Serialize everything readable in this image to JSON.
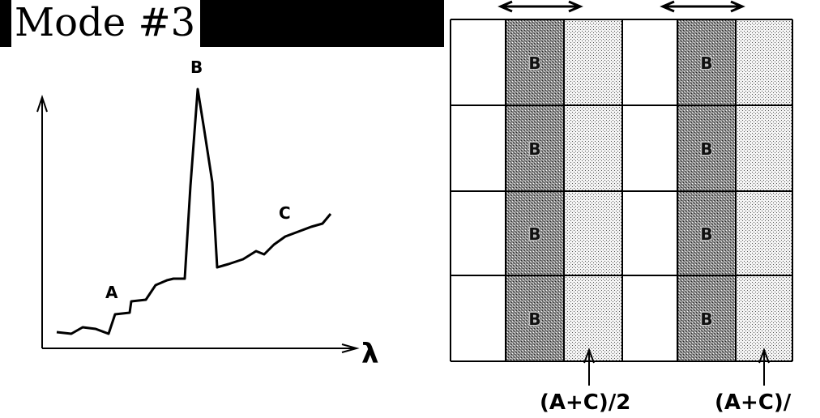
{
  "title": "Mode #3",
  "spectrum": {
    "peak_labels": [
      "A",
      "B",
      "C"
    ],
    "axis_label": "λ"
  },
  "grid": {
    "rows": 4,
    "columns": [
      {
        "type": "blank"
      },
      {
        "type": "dark",
        "label": "B"
      },
      {
        "type": "dotted"
      },
      {
        "type": "blank"
      },
      {
        "type": "dark",
        "label": "B"
      },
      {
        "type": "dotted"
      }
    ],
    "bottom_labels": [
      "(A+C)/2",
      "(A+C)/"
    ]
  },
  "colors": {
    "background": "#000000",
    "panel": "#ffffff",
    "ink": "#000000",
    "dark_fill": "#9a9a9a",
    "dotted_fill": "#e6e6e6"
  }
}
